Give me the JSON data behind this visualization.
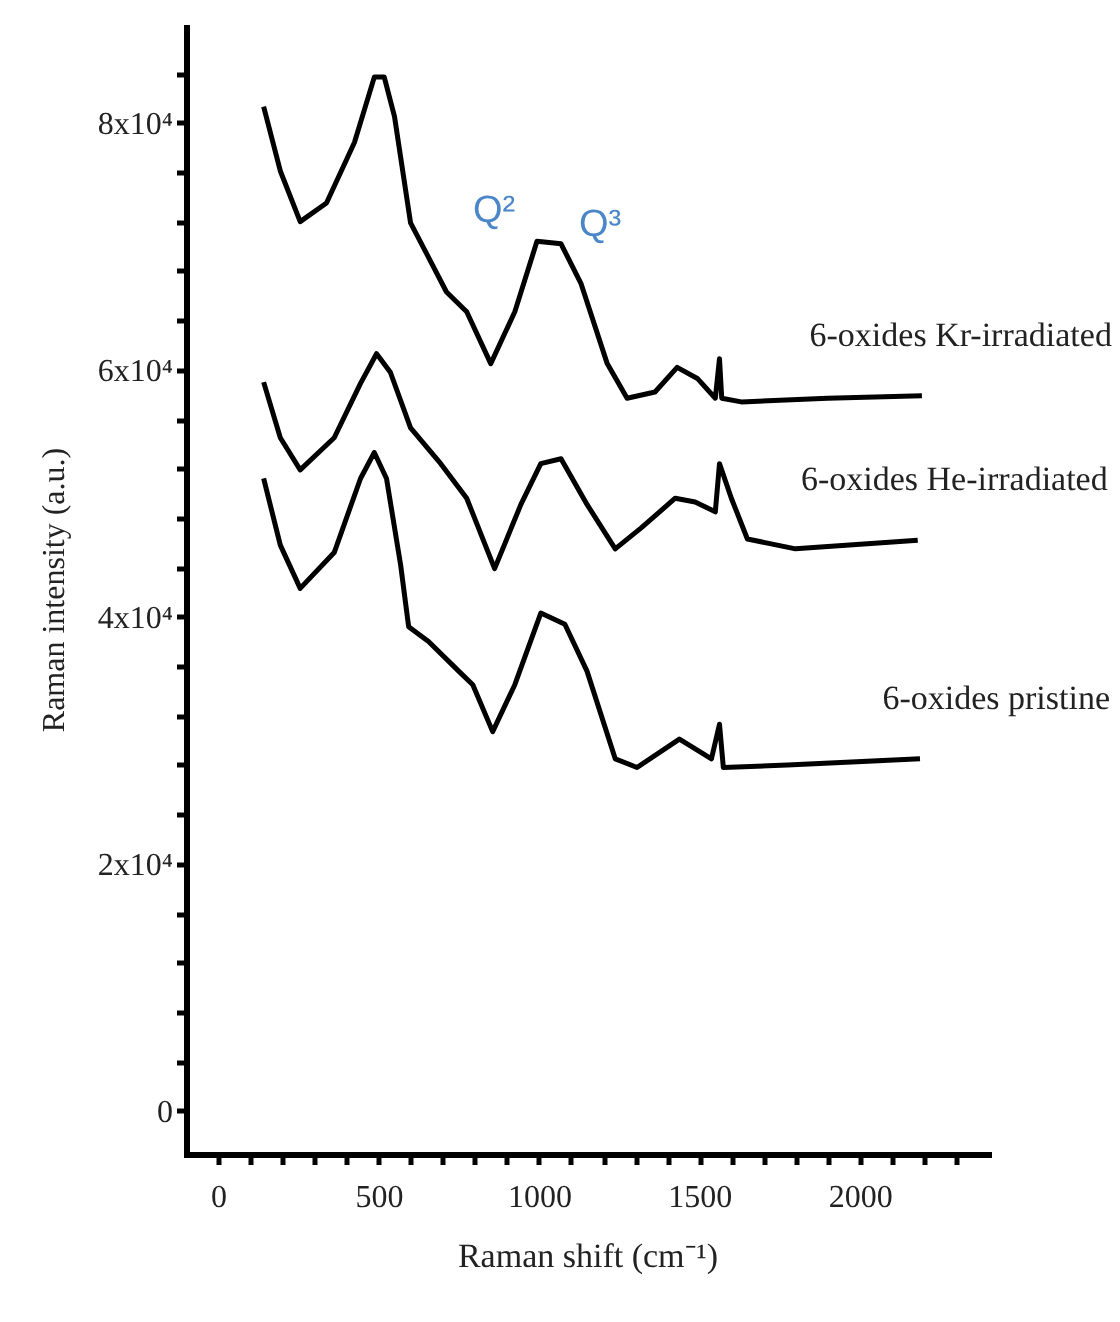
{
  "chart_data": {
    "type": "line",
    "xlabel": "Raman shift (cm⁻¹)",
    "ylabel": "Raman intensity (a.u.)",
    "xlim": [
      -100,
      2400
    ],
    "ylim": [
      -3500,
      88000
    ],
    "xticks": [
      0,
      {
        "value": 100,
        "label": null
      },
      {
        "value": 200,
        "label": null
      },
      {
        "value": 300,
        "label": null
      },
      {
        "value": 400,
        "label": null
      },
      500,
      {
        "value": 600,
        "label": null
      },
      {
        "value": 700,
        "label": null
      },
      {
        "value": 800,
        "label": null
      },
      {
        "value": 900,
        "label": null
      },
      1000,
      {
        "value": 1100,
        "label": null
      },
      {
        "value": 1200,
        "label": null
      },
      {
        "value": 1300,
        "label": null
      },
      {
        "value": 1400,
        "label": null
      },
      1500,
      {
        "value": 1600,
        "label": null
      },
      {
        "value": 1700,
        "label": null
      },
      {
        "value": 1800,
        "label": null
      },
      {
        "value": 1900,
        "label": null
      },
      2000,
      {
        "value": 2100,
        "label": null
      },
      {
        "value": 2200,
        "label": null
      },
      {
        "value": 2300,
        "label": null
      }
    ],
    "yticks": [
      0,
      {
        "value": 4000,
        "label": null
      },
      {
        "value": 8000,
        "label": null
      },
      {
        "value": 12000,
        "label": null
      },
      {
        "value": 16000,
        "label": null
      },
      {
        "value": 20000,
        "label": "2x10⁴"
      },
      {
        "value": 24000,
        "label": null
      },
      {
        "value": 28000,
        "label": null
      },
      {
        "value": 32000,
        "label": null
      },
      {
        "value": 36000,
        "label": null
      },
      {
        "value": 40000,
        "label": "4x10⁴"
      },
      {
        "value": 44000,
        "label": null
      },
      {
        "value": 48000,
        "label": null
      },
      {
        "value": 52000,
        "label": null
      },
      {
        "value": 56000,
        "label": null
      },
      {
        "value": 60000,
        "label": "6x10⁴"
      },
      {
        "value": 64000,
        "label": null
      },
      {
        "value": 68000,
        "label": null
      },
      {
        "value": 72000,
        "label": null
      },
      {
        "value": 76000,
        "label": null
      },
      {
        "value": 80000,
        "label": "8x10⁴"
      },
      {
        "value": 84000,
        "label": null
      }
    ],
    "grid": false,
    "annotations": [
      "Q²",
      "Q³"
    ],
    "series": [
      {
        "name": "6-oxides Kr-irradiated",
        "color": "#000000",
        "x": [
          142,
          194,
          256,
          338,
          425,
          487,
          518,
          550,
          600,
          650,
          712,
          775,
          850,
          925,
          994,
          1069,
          1131,
          1213,
          1275,
          1362,
          1431,
          1494,
          1550,
          1563,
          1570,
          1631,
          1900,
          2194
        ],
        "values": [
          81300,
          76100,
          72000,
          73500,
          78400,
          83700,
          83700,
          80500,
          71900,
          69400,
          66300,
          64700,
          60500,
          64700,
          70400,
          70200,
          67000,
          60500,
          57700,
          58200,
          60200,
          59300,
          57700,
          60900,
          57700,
          57400,
          57700,
          57900
        ]
      },
      {
        "name": "6-oxides He-irradiated",
        "color": "#000000",
        "x": [
          142,
          194,
          256,
          362,
          444,
          494,
          537,
          600,
          694,
          775,
          862,
          944,
          1006,
          1069,
          1150,
          1238,
          1319,
          1425,
          1487,
          1550,
          1563,
          1600,
          1650,
          1800,
          2181
        ],
        "values": [
          59000,
          54500,
          51900,
          54500,
          58900,
          61300,
          59800,
          55300,
          52400,
          49600,
          43900,
          49100,
          52400,
          52800,
          49100,
          45500,
          47200,
          49600,
          49300,
          48500,
          52400,
          49600,
          46300,
          45500,
          46200
        ]
      },
      {
        "name": "6-oxides pristine",
        "color": "#000000",
        "x": [
          142,
          194,
          256,
          362,
          444,
          487,
          525,
          569,
          594,
          656,
          750,
          794,
          856,
          925,
          1006,
          1081,
          1150,
          1238,
          1306,
          1438,
          1538,
          1563,
          1575,
          1775,
          2188
        ],
        "values": [
          51200,
          45800,
          42300,
          45200,
          51200,
          53300,
          51200,
          44200,
          39200,
          38000,
          35600,
          34500,
          30700,
          34500,
          40300,
          39400,
          35600,
          28500,
          27800,
          30100,
          28500,
          31300,
          27800,
          28000,
          28500
        ]
      }
    ]
  }
}
